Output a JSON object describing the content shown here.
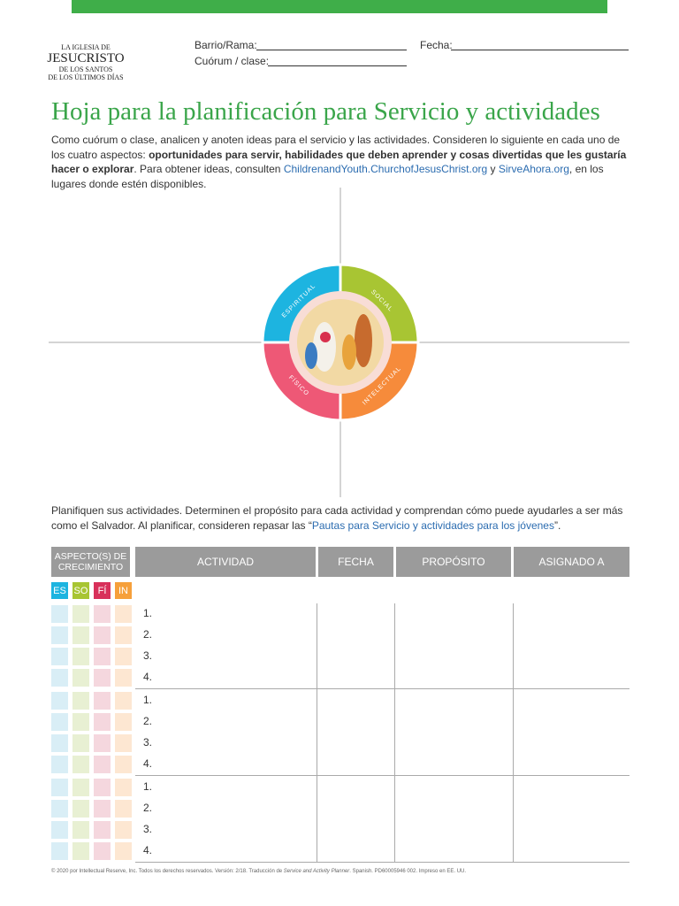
{
  "header": {
    "logo": [
      "LA IGLESIA DE",
      "JESUCRISTO",
      "DE LOS SANTOS",
      "DE LOS ÚLTIMOS DÍAS"
    ],
    "fields": {
      "ward": "Barrio/Rama:",
      "date": "Fecha:",
      "quorum": "Cuórum / clase:"
    }
  },
  "title": "Hoja para la planificación para Servicio y actividades",
  "intro": [
    {
      "text": "Como cuórum o clase, analicen y anoten ideas para el servicio y las actividades. Consideren lo siguiente en cada uno de los cuatro aspectos: ",
      "style": "normal"
    },
    {
      "text": "oportunidades para servir, habilidades que deben aprender y cosas divertidas que les gustaría hacer o explorar",
      "style": "bold"
    },
    {
      "text": ". Para obtener ideas, consulten ",
      "style": "normal"
    },
    {
      "text": "ChildrenandYouth.ChurchofJesusChrist.org",
      "style": "link"
    },
    {
      "text": " y ",
      "style": "normal"
    },
    {
      "text": "SirveAhora.org",
      "style": "link"
    },
    {
      "text": ", en los lugares donde estén disponibles.",
      "style": "normal"
    }
  ],
  "wheel": {
    "aspects": [
      "ESPIRITUAL",
      "SOCIAL",
      "FÍSICO",
      "INTELECTUAL"
    ]
  },
  "plan_text": [
    {
      "text": "Planifiquen sus actividades. Determinen el propósito para cada actividad y comprendan cómo puede ayudarles a ser más como el Salvador. Al planificar, consideren repasar las “",
      "style": "normal"
    },
    {
      "text": "Pautas para Servicio y actividades para los jóvenes",
      "style": "link"
    },
    {
      "text": "”.",
      "style": "normal"
    }
  ],
  "table": {
    "columns": [
      "ASPECTO(S) DE CRECIMIENTO",
      "ACTIVIDAD",
      "FECHA",
      "PROPÓSITO",
      "ASIGNADO A"
    ],
    "badges": [
      "ES",
      "SO",
      "FÍ",
      "IN"
    ],
    "groups": [
      [
        "1.",
        "2.",
        "3.",
        "4."
      ],
      [
        "1.",
        "2.",
        "3.",
        "4."
      ],
      [
        "1.",
        "2.",
        "3.",
        "4."
      ]
    ]
  },
  "footer": [
    {
      "text": "© 2020 por Intellectual Reserve, Inc. Todos los derechos reservados. Versión: 2/18. Traducción de ",
      "style": "normal"
    },
    {
      "text": "Service and Activity Planner",
      "style": "italic"
    },
    {
      "text": ". Spanish. PD60005946 002. Impreso en EE. UU.",
      "style": "normal"
    }
  ]
}
